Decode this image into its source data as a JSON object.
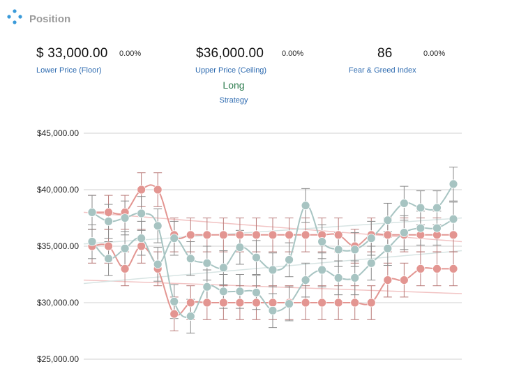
{
  "header": {
    "title": "Position",
    "icon": "cross-dots-icon"
  },
  "metrics": [
    {
      "value": "$ 33,000.00",
      "change": "0.00%",
      "label": "Lower Price (Floor)"
    },
    {
      "value": "$36,000.00",
      "change": "0.00%",
      "label": "Upper Price (Ceiling)"
    },
    {
      "value": "86",
      "change": "0.00%",
      "label": "Fear & Greed Index"
    }
  ],
  "strategy": {
    "value": "Long",
    "label": "Strategy",
    "value_color": "#2e7d4f"
  },
  "chart_data": {
    "type": "line",
    "ylim": [
      25000,
      45000
    ],
    "yticks": [
      {
        "value": 45000,
        "label": "$45,000.00"
      },
      {
        "value": 40000,
        "label": "$40,000.00"
      },
      {
        "value": 35000,
        "label": "$35,000.00"
      },
      {
        "value": 30000,
        "label": "$30,000.00"
      },
      {
        "value": 25000,
        "label": "$25,000.00"
      }
    ],
    "grid": true,
    "x": [
      1,
      2,
      3,
      4,
      5,
      6,
      7,
      8,
      9,
      10,
      11,
      12,
      13,
      14,
      15,
      16,
      17,
      18,
      19,
      20,
      21,
      22,
      23
    ],
    "error_bar": 1500,
    "series": [
      {
        "color": "#e39591",
        "values": [
          38000,
          38000,
          38000,
          40000,
          40000,
          36000,
          36000,
          36000,
          36000,
          36000,
          36000,
          36000,
          36000,
          36000,
          36000,
          36000,
          35000,
          36000,
          36000,
          36000,
          36000,
          36000,
          36000
        ]
      },
      {
        "color": "#e39591",
        "values": [
          35000,
          35000,
          33000,
          35000,
          33000,
          29000,
          30000,
          30000,
          30000,
          30000,
          30000,
          30000,
          30000,
          30000,
          30000,
          30000,
          30000,
          30000,
          32000,
          32000,
          33000,
          33000,
          33000
        ]
      },
      {
        "color": "#a7c4c2",
        "values": [
          38000,
          37200,
          37500,
          37900,
          36800,
          30100,
          28800,
          31400,
          31000,
          31000,
          30900,
          29300,
          29900,
          32000,
          32900,
          32200,
          32200,
          33500,
          34800,
          36200,
          36600,
          36600,
          37400
        ]
      },
      {
        "color": "#a7c4c2",
        "values": [
          35400,
          33900,
          34800,
          35700,
          33400,
          35700,
          33900,
          33500,
          33100,
          34900,
          34000,
          32900,
          33800,
          38600,
          35400,
          34700,
          34700,
          35700,
          37300,
          38800,
          38400,
          38400,
          40500
        ]
      }
    ],
    "trend_lines": [
      {
        "color": "#f2c4c4",
        "from": 38000,
        "to": 35400
      },
      {
        "color": "#f2c4c4",
        "from": 32000,
        "to": 30800
      },
      {
        "color": "#d7e4e3",
        "from": 35200,
        "to": 37500
      },
      {
        "color": "#d7e4e3",
        "from": 31700,
        "to": 34600
      }
    ]
  }
}
